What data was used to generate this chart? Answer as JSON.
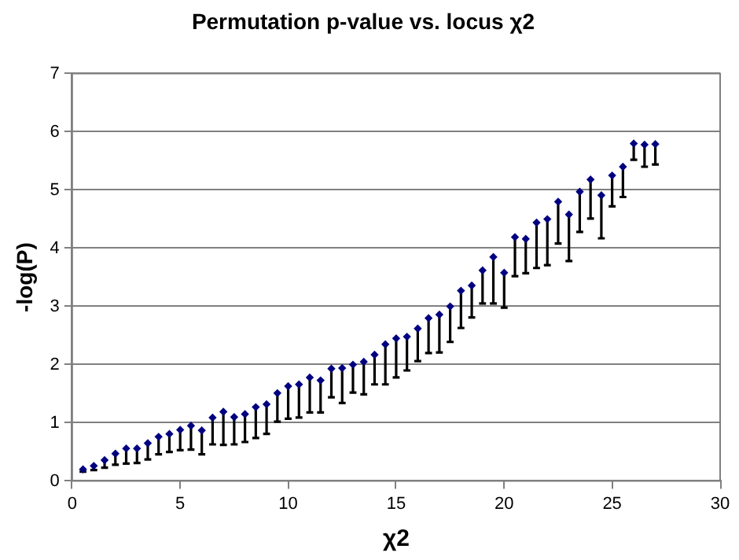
{
  "chart_data": {
    "type": "scatter",
    "title": "Permutation p-value vs. locus χ2",
    "xlabel": "χ2",
    "ylabel": "-log(P)",
    "x": [
      0.5,
      1,
      1.5,
      2,
      2.5,
      3,
      3.5,
      4,
      4.5,
      5,
      5.5,
      6,
      6.5,
      7,
      7.5,
      8,
      8.5,
      9,
      9.5,
      10,
      10.5,
      11,
      11.5,
      12,
      12.5,
      13,
      13.5,
      14,
      14.5,
      15,
      15.5,
      16,
      16.5,
      17,
      17.5,
      18,
      18.5,
      19,
      19.5,
      20,
      20.5,
      21,
      21.5,
      22,
      22.5,
      23,
      23.5,
      24,
      24.5,
      25,
      25.5,
      26,
      26.5,
      27
    ],
    "series": [
      {
        "color": "#000080",
        "values": [
          0.2,
          0.26,
          0.36,
          0.47,
          0.56,
          0.56,
          0.65,
          0.76,
          0.81,
          0.88,
          0.95,
          0.87,
          1.09,
          1.19,
          1.1,
          1.15,
          1.27,
          1.32,
          1.51,
          1.63,
          1.66,
          1.78,
          1.73,
          1.93,
          1.94,
          2.0,
          2.05,
          2.17,
          2.35,
          2.45,
          2.48,
          2.62,
          2.8,
          2.86,
          3.0,
          3.27,
          3.36,
          3.62,
          3.85,
          3.58,
          4.19,
          4.16,
          4.44,
          4.5,
          4.8,
          4.58,
          4.97,
          5.18,
          4.91,
          5.25,
          5.4,
          5.8,
          5.78,
          5.79
        ],
        "errors": [
          [
            0.16,
            0.2
          ],
          [
            0.19,
            0.26
          ],
          [
            0.23,
            0.36
          ],
          [
            0.28,
            0.47
          ],
          [
            0.3,
            0.56
          ],
          [
            0.31,
            0.56
          ],
          [
            0.37,
            0.65
          ],
          [
            0.46,
            0.76
          ],
          [
            0.5,
            0.81
          ],
          [
            0.53,
            0.88
          ],
          [
            0.54,
            0.95
          ],
          [
            0.46,
            0.87
          ],
          [
            0.63,
            1.09
          ],
          [
            0.62,
            1.19
          ],
          [
            0.63,
            1.1
          ],
          [
            0.67,
            1.15
          ],
          [
            0.74,
            1.27
          ],
          [
            0.81,
            1.32
          ],
          [
            1.02,
            1.51
          ],
          [
            1.07,
            1.63
          ],
          [
            1.09,
            1.66
          ],
          [
            1.18,
            1.78
          ],
          [
            1.18,
            1.73
          ],
          [
            1.44,
            1.93
          ],
          [
            1.34,
            1.94
          ],
          [
            1.52,
            2.0
          ],
          [
            1.49,
            2.05
          ],
          [
            1.66,
            2.17
          ],
          [
            1.66,
            2.35
          ],
          [
            1.78,
            2.45
          ],
          [
            1.9,
            2.48
          ],
          [
            2.06,
            2.62
          ],
          [
            2.2,
            2.8
          ],
          [
            2.21,
            2.86
          ],
          [
            2.39,
            3.0
          ],
          [
            2.63,
            3.27
          ],
          [
            2.81,
            3.36
          ],
          [
            3.05,
            3.62
          ],
          [
            3.05,
            3.85
          ],
          [
            2.98,
            3.58
          ],
          [
            3.52,
            4.19
          ],
          [
            3.57,
            4.16
          ],
          [
            3.66,
            4.44
          ],
          [
            3.71,
            4.5
          ],
          [
            4.08,
            4.8
          ],
          [
            3.78,
            4.58
          ],
          [
            4.28,
            4.97
          ],
          [
            4.51,
            5.18
          ],
          [
            4.17,
            4.91
          ],
          [
            4.72,
            5.25
          ],
          [
            4.88,
            5.4
          ],
          [
            5.52,
            5.8
          ],
          [
            5.4,
            5.78
          ],
          [
            5.44,
            5.79
          ]
        ]
      }
    ],
    "xlim": [
      0,
      30
    ],
    "xticks": [
      0,
      5,
      10,
      15,
      20,
      25,
      30
    ],
    "ylim": [
      0,
      7
    ],
    "yticks": [
      0,
      1,
      2,
      3,
      4,
      5,
      6,
      7
    ],
    "grid": "y",
    "marker": "diamond",
    "legend": false
  }
}
